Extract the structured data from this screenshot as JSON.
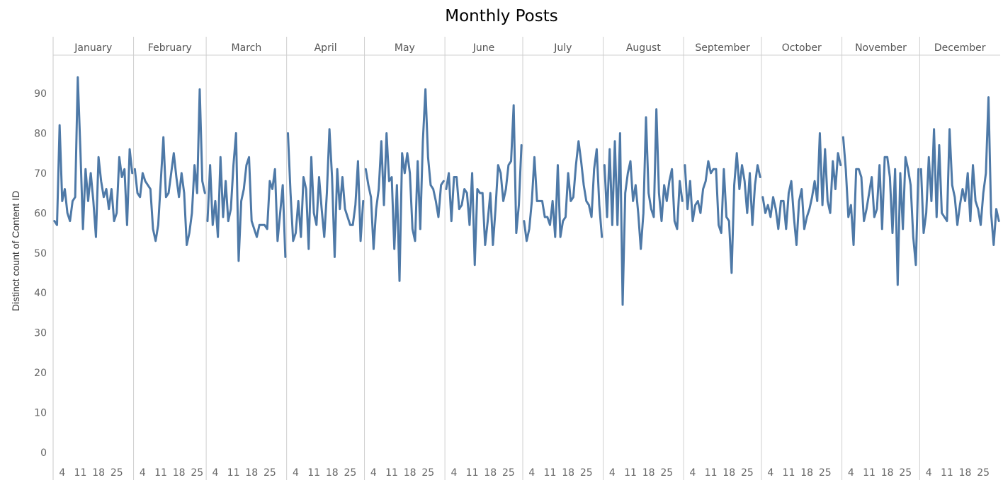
{
  "chart_data": {
    "type": "line",
    "title": "Monthly Posts",
    "ylabel": "Distinct count of Content ID",
    "xlabel": "",
    "ylim": [
      0,
      97
    ],
    "y_ticks": [
      0,
      10,
      20,
      30,
      40,
      50,
      60,
      70,
      80,
      90
    ],
    "x_tick_days": [
      4,
      11,
      18,
      25
    ],
    "grid": false,
    "color": "#4e79a7",
    "months": [
      {
        "name": "January",
        "days": 31,
        "values": [
          58,
          57,
          82,
          63,
          66,
          60,
          58,
          63,
          64,
          94,
          76,
          56,
          71,
          63,
          70,
          63,
          54,
          74,
          68,
          64,
          66,
          61,
          66,
          58,
          60,
          74,
          69,
          71,
          57,
          76,
          70
        ]
      },
      {
        "name": "February",
        "days": 28,
        "values": [
          71,
          65,
          64,
          70,
          68,
          67,
          66,
          56,
          53,
          57,
          68,
          79,
          64,
          65,
          70,
          75,
          69,
          64,
          70,
          65,
          52,
          55,
          60,
          72,
          65,
          91,
          68,
          65
        ]
      },
      {
        "name": "March",
        "days": 31,
        "values": [
          58,
          72,
          57,
          63,
          54,
          74,
          59,
          68,
          58,
          61,
          72,
          80,
          48,
          63,
          66,
          72,
          74,
          58,
          56,
          54,
          57,
          57,
          57,
          56,
          68,
          66,
          71,
          53,
          60,
          67,
          49
        ]
      },
      {
        "name": "April",
        "days": 30,
        "values": [
          80,
          65,
          53,
          55,
          63,
          54,
          69,
          66,
          51,
          74,
          60,
          57,
          69,
          61,
          54,
          65,
          81,
          69,
          49,
          71,
          61,
          69,
          61,
          59,
          57,
          57,
          62,
          73,
          53,
          63
        ]
      },
      {
        "name": "May",
        "days": 31,
        "values": [
          71,
          67,
          64,
          51,
          61,
          66,
          78,
          62,
          80,
          68,
          69,
          51,
          67,
          43,
          75,
          70,
          75,
          70,
          56,
          53,
          73,
          56,
          78,
          91,
          74,
          67,
          66,
          63,
          59,
          67,
          68
        ]
      },
      {
        "name": "June",
        "days": 30,
        "values": [
          66,
          70,
          58,
          69,
          69,
          61,
          62,
          66,
          65,
          57,
          70,
          47,
          66,
          65,
          65,
          52,
          58,
          65,
          52,
          61,
          72,
          70,
          63,
          66,
          72,
          73,
          87,
          55,
          62,
          77
        ]
      },
      {
        "name": "July",
        "days": 31,
        "values": [
          58,
          53,
          56,
          63,
          74,
          63,
          63,
          63,
          59,
          59,
          57,
          63,
          54,
          72,
          54,
          58,
          59,
          70,
          63,
          64,
          72,
          78,
          73,
          67,
          63,
          62,
          59,
          71,
          76,
          62,
          54
        ]
      },
      {
        "name": "August",
        "days": 31,
        "values": [
          72,
          59,
          76,
          57,
          78,
          57,
          80,
          37,
          65,
          70,
          73,
          63,
          67,
          60,
          51,
          60,
          84,
          65,
          61,
          59,
          86,
          65,
          58,
          67,
          63,
          68,
          71,
          58,
          56,
          68,
          63
        ]
      },
      {
        "name": "September",
        "days": 30,
        "values": [
          72,
          61,
          68,
          58,
          62,
          63,
          60,
          66,
          68,
          73,
          70,
          71,
          71,
          57,
          55,
          71,
          59,
          58,
          45,
          67,
          75,
          66,
          72,
          68,
          60,
          70,
          57,
          67,
          72,
          69
        ]
      },
      {
        "name": "October",
        "days": 31,
        "values": [
          64,
          60,
          62,
          59,
          64,
          61,
          56,
          63,
          63,
          56,
          65,
          68,
          59,
          52,
          63,
          66,
          56,
          59,
          61,
          64,
          68,
          63,
          80,
          62,
          76,
          63,
          60,
          73,
          66,
          75,
          72
        ]
      },
      {
        "name": "November",
        "days": 30,
        "values": [
          79,
          71,
          59,
          62,
          52,
          71,
          71,
          69,
          58,
          61,
          65,
          69,
          59,
          61,
          72,
          56,
          74,
          74,
          69,
          55,
          71,
          42,
          70,
          56,
          74,
          71,
          67,
          54,
          47,
          71
        ]
      },
      {
        "name": "December",
        "days": 31,
        "values": [
          71,
          55,
          60,
          74,
          63,
          81,
          59,
          77,
          60,
          59,
          58,
          81,
          67,
          64,
          57,
          62,
          66,
          63,
          70,
          58,
          72,
          63,
          61,
          57,
          65,
          70,
          89,
          60,
          52,
          61,
          58
        ]
      }
    ]
  }
}
